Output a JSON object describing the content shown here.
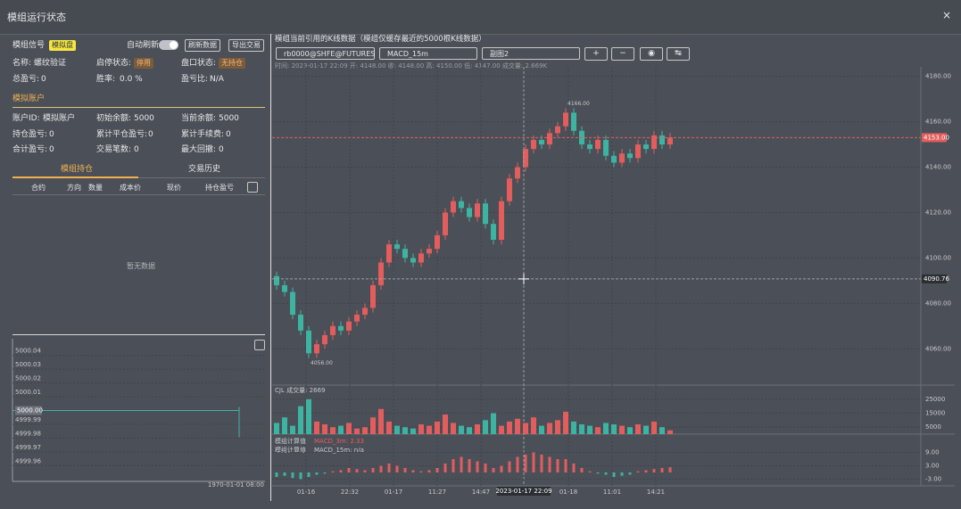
{
  "header": {
    "title": "模组运行状态",
    "close": "×"
  },
  "left": {
    "signal_label": "模组信号",
    "mode_badge": "模拟盘",
    "auto_refresh": "自动刷新",
    "refresh_button": "刷新数据",
    "export_button": "导出交易",
    "status": {
      "name_label": "名称:",
      "name": "螺纹验证",
      "run_label": "启停状态:",
      "run": "停用",
      "book_label": "盘口状态:",
      "book": "无持仓",
      "pnl_label": "总盈亏:",
      "pnl": 0,
      "win_label": "胜率:",
      "win": "0.0 %",
      "ratio_label": "盈亏比:",
      "ratio": "N/A"
    },
    "account_tab": "模拟账户",
    "account": {
      "id_label": "账户ID:",
      "id": "模拟账户",
      "init_label": "初始余额:",
      "init": 5000,
      "cur_label": "当前余额:",
      "cur": 5000,
      "hold_label": "持仓盈亏:",
      "hold": 0,
      "closed_label": "累计平仓盈亏:",
      "closed": 0,
      "fee_label": "累计手续费:",
      "fee": 0,
      "total_label": "合计盈亏:",
      "total": 0,
      "trades_label": "交易笔数:",
      "trades": 0,
      "dd_label": "最大回撤:",
      "dd": 0
    },
    "tabs": [
      "模组持仓",
      "交易历史"
    ],
    "table": {
      "columns": [
        "合约",
        "方向",
        "数量",
        "成本价",
        "现价",
        "持仓盈亏"
      ],
      "empty": "暂无数据"
    },
    "equity_chart": {
      "ylim": [
        4999.955,
        5000.045
      ],
      "yticks": [
        5000.04,
        5000.03,
        5000.02,
        5000.01,
        4999.99,
        4999.98,
        4999.97,
        4999.96
      ],
      "current": {
        "value": 5000,
        "label": "5000.00"
      },
      "x_label": "1970-01-01 08:00"
    }
  },
  "right": {
    "title": "模组当前引用的K线数据（模组仅缓存最近的5000根K线数据）",
    "selects": [
      "rb0000@SHFE@FUTURES",
      "MACD_15m",
      "副图2"
    ],
    "buttons": [
      "+",
      "−",
      "◉",
      "↹"
    ],
    "info": "时间: 2023-01-17 22:09   开: 4148.00   收: 4148.00   高: 4150.00   低: 4147.00   成交量: 2.669K",
    "kline": {
      "ylim": [
        4044,
        4183
      ],
      "yticks": [
        {
          "value": 4180,
          "label": "4180.00"
        },
        {
          "value": 4160,
          "label": "4160.00"
        },
        {
          "value": 4140,
          "label": "4140.00"
        },
        {
          "value": 4120,
          "label": "4120.00"
        },
        {
          "value": 4100,
          "label": "4100.00"
        },
        {
          "value": 4080,
          "label": "4080.00"
        },
        {
          "value": 4060,
          "label": "4060.00"
        }
      ],
      "open": [
        4092,
        4088,
        4085,
        4075,
        4068,
        4058,
        4062,
        4066,
        4070,
        4068,
        4072,
        4075,
        4078,
        4088,
        4098,
        4106,
        4104,
        4100,
        4098,
        4102,
        4104,
        4110,
        4120,
        4125,
        4122,
        4118,
        4124,
        4115,
        4108,
        4125,
        4135,
        4140,
        4148,
        4152,
        4150,
        4155,
        4158,
        4164,
        4156,
        4150,
        4148,
        4152,
        4145,
        4142,
        4146,
        4144,
        4150,
        4148,
        4154,
        4150
      ],
      "high": [
        4094,
        4090,
        4087,
        4077,
        4070,
        4064,
        4068,
        4072,
        4072,
        4074,
        4077,
        4080,
        4090,
        4100,
        4108,
        4108,
        4106,
        4102,
        4104,
        4106,
        4112,
        4122,
        4127,
        4127,
        4124,
        4126,
        4126,
        4117,
        4127,
        4137,
        4142,
        4150,
        4154,
        4154,
        4157,
        4160,
        4166,
        4166,
        4158,
        4152,
        4154,
        4154,
        4147,
        4148,
        4148,
        4152,
        4152,
        4156,
        4156,
        4155
      ],
      "low": [
        4086,
        4083,
        4073,
        4066,
        4056,
        4056,
        4060,
        4064,
        4066,
        4066,
        4070,
        4073,
        4076,
        4086,
        4096,
        4102,
        4098,
        4096,
        4096,
        4100,
        4102,
        4108,
        4118,
        4120,
        4116,
        4116,
        4113,
        4106,
        4106,
        4123,
        4133,
        4138,
        4146,
        4148,
        4148,
        4153,
        4156,
        4154,
        4148,
        4146,
        4146,
        4143,
        4140,
        4140,
        4142,
        4142,
        4146,
        4146,
        4148,
        4148
      ],
      "close": [
        4088,
        4085,
        4075,
        4068,
        4058,
        4062,
        4066,
        4070,
        4068,
        4072,
        4075,
        4078,
        4088,
        4098,
        4106,
        4104,
        4100,
        4098,
        4102,
        4104,
        4110,
        4120,
        4125,
        4122,
        4118,
        4124,
        4115,
        4108,
        4125,
        4135,
        4140,
        4148,
        4152,
        4150,
        4155,
        4158,
        4164,
        4156,
        4150,
        4148,
        4152,
        4145,
        4142,
        4146,
        4144,
        4150,
        4148,
        4154,
        4150,
        4153
      ],
      "high_mark": {
        "value": 4166,
        "label": "4166.00"
      },
      "low_mark": {
        "value": 4056,
        "label": "4056.00"
      },
      "last_price": {
        "value": 4153,
        "label": "4153.00"
      },
      "crosshair": {
        "value": 4090.76,
        "label": "4090.76"
      }
    },
    "volume": {
      "title": "CJL   成交量: 2669",
      "ylim": [
        0,
        30000
      ],
      "yticks": [
        25000,
        15000,
        5000
      ],
      "values": [
        8000,
        12000,
        6000,
        20000,
        25000,
        9000,
        7000,
        5000,
        6000,
        8000,
        4000,
        5000,
        12000,
        18000,
        9000,
        6000,
        5000,
        4000,
        7000,
        6000,
        9000,
        14000,
        8000,
        6000,
        5000,
        7000,
        10000,
        15000,
        6000,
        9000,
        11000,
        8000,
        12000,
        6000,
        8000,
        10000,
        16000,
        9000,
        7000,
        6000,
        5000,
        8000,
        7000,
        6000,
        5000,
        7000,
        6000,
        9000,
        5000,
        2669
      ]
    },
    "macd": {
      "legend_label": "模组计算值",
      "legend": [
        "MACD_3m: 2.33",
        "MACD_15m: n/a"
      ],
      "ylim": [
        -6,
        16
      ],
      "yticks": [
        {
          "value": 9,
          "label": "9.00"
        },
        {
          "value": 3,
          "label": "3.00"
        },
        {
          "value": -3,
          "label": "-3.00"
        }
      ],
      "values": [
        -2,
        -1.5,
        -2.5,
        -3,
        -2,
        -1,
        -0.5,
        0.5,
        1,
        2,
        1.5,
        1,
        2,
        3,
        4,
        3,
        2,
        1,
        0.5,
        1,
        2,
        4,
        6,
        7,
        6,
        5,
        4,
        2,
        3,
        5,
        7,
        8,
        9,
        8,
        7,
        6,
        6,
        4,
        2,
        0.5,
        -0.5,
        -1,
        -2,
        -1.5,
        -1,
        0.5,
        1,
        1.5,
        2,
        2.33
      ]
    },
    "x_labels": [
      "01-16",
      "22:32",
      "01-17",
      "11:27",
      "14:47",
      "01-18",
      "11:01",
      "14:21"
    ],
    "crosshair_time": "2023-01-17 22:09"
  }
}
